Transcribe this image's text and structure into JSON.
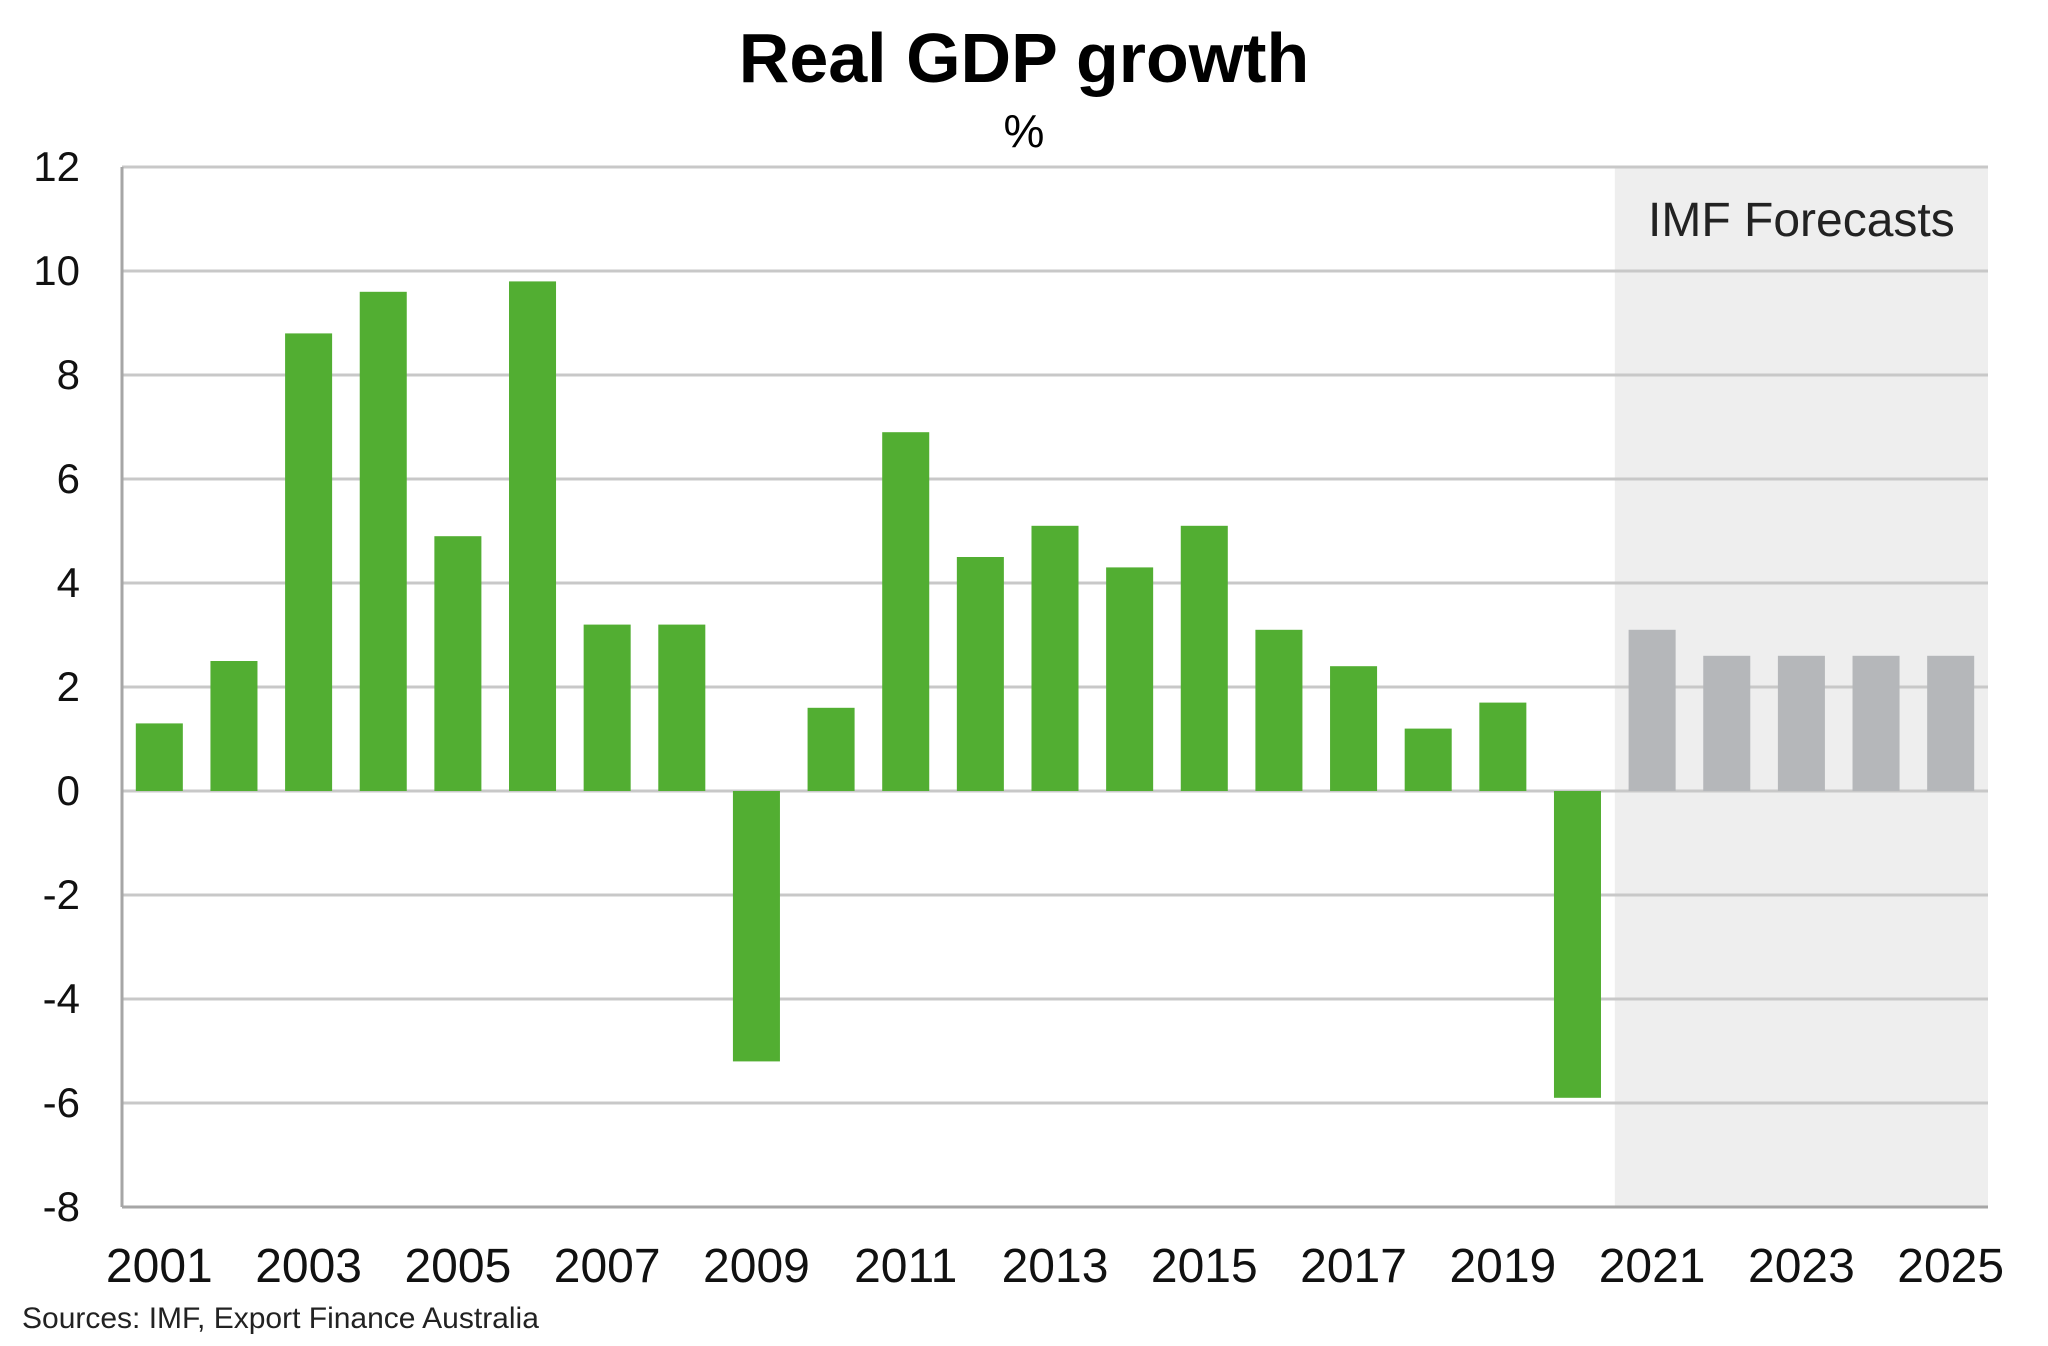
{
  "chart_data": {
    "type": "bar",
    "title": "Real GDP growth",
    "subtitle": "%",
    "source": "Sources: IMF, Export Finance Australia",
    "forecast_label": "IMF Forecasts",
    "categories": [
      "2001",
      "2002",
      "2003",
      "2004",
      "2005",
      "2006",
      "2007",
      "2008",
      "2009",
      "2010",
      "2011",
      "2012",
      "2013",
      "2014",
      "2015",
      "2016",
      "2017",
      "2018",
      "2019",
      "2020",
      "2021",
      "2022",
      "2023",
      "2024",
      "2025"
    ],
    "x_tick_labels": [
      "2001",
      "2003",
      "2005",
      "2007",
      "2009",
      "2011",
      "2013",
      "2015",
      "2017",
      "2019",
      "2021",
      "2023",
      "2025"
    ],
    "values": [
      1.3,
      2.5,
      8.8,
      9.6,
      4.9,
      9.8,
      3.2,
      3.2,
      -5.2,
      1.6,
      6.9,
      4.5,
      5.1,
      4.3,
      5.1,
      3.1,
      2.4,
      1.2,
      1.7,
      -5.9,
      3.1,
      2.6,
      2.6,
      2.6,
      2.6
    ],
    "forecast_from": "2021",
    "ylim": [
      -8,
      12
    ],
    "y_ticks": [
      -8,
      -6,
      -4,
      -2,
      0,
      2,
      4,
      6,
      8,
      10,
      12
    ],
    "grid": true,
    "colors": {
      "actual": "#52AE32",
      "forecast": "#B5B7BA",
      "forecast_background": "#EEEEEE",
      "grid": "#C8C8C8"
    }
  }
}
